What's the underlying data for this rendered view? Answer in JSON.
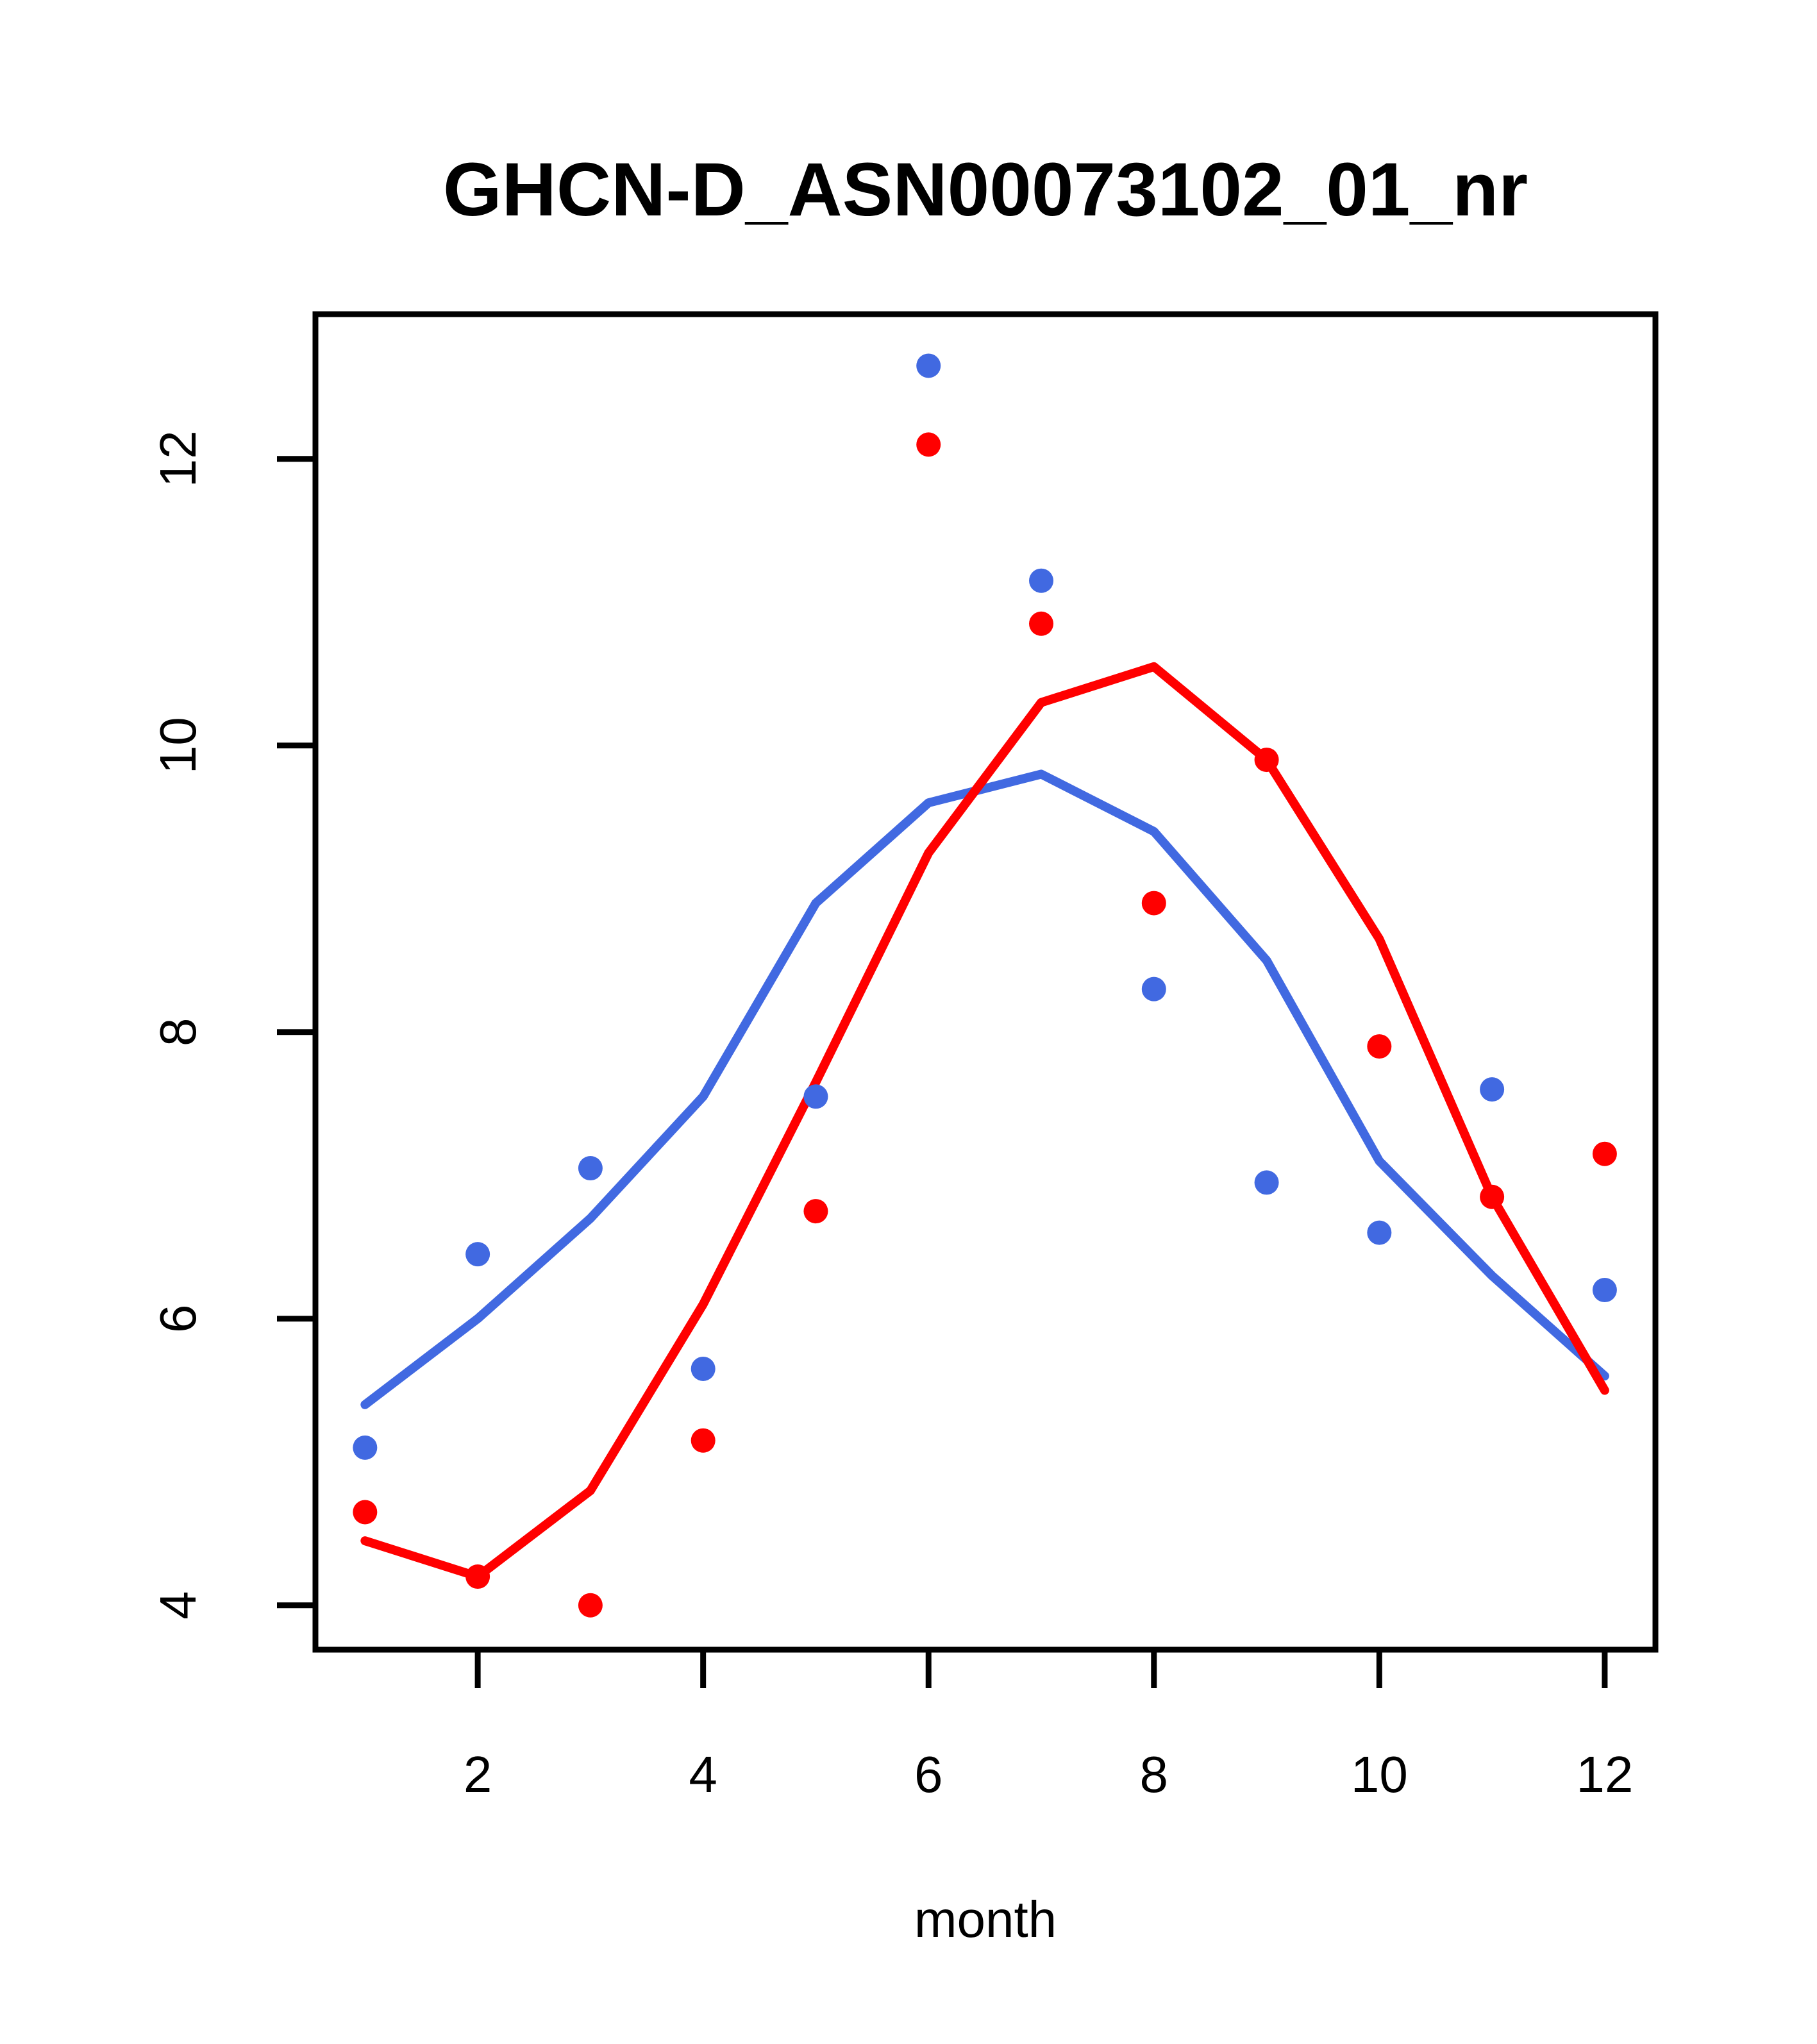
{
  "page": {
    "background": "#ffffff"
  },
  "chart_data": {
    "type": "scatter",
    "title": "GHCN-D_ASN00073102_01_nr",
    "xlabel": "month",
    "ylabel": "",
    "x": [
      1,
      2,
      3,
      4,
      5,
      6,
      7,
      8,
      9,
      10,
      11,
      12
    ],
    "x_ticks": [
      2,
      4,
      6,
      8,
      10,
      12
    ],
    "y_ticks": [
      4,
      6,
      8,
      10,
      12
    ],
    "xlim": [
      0.56,
      12.45
    ],
    "ylim": [
      3.69,
      13.01
    ],
    "grid": false,
    "legend": "none",
    "frame": "box",
    "colors": {
      "blue": "#4169E1",
      "red": "#FF0000",
      "axis": "#000000"
    },
    "series": [
      {
        "name": "blue-points",
        "kind": "points",
        "color": "blue",
        "values": [
          5.1,
          6.45,
          7.05,
          5.65,
          7.55,
          12.65,
          11.15,
          8.3,
          6.95,
          6.6,
          7.6,
          6.2
        ]
      },
      {
        "name": "red-points",
        "kind": "points",
        "color": "red",
        "values": [
          4.65,
          4.2,
          4.0,
          5.15,
          6.75,
          12.1,
          10.85,
          8.9,
          9.9,
          7.9,
          6.85,
          7.15
        ]
      },
      {
        "name": "blue-line",
        "kind": "line",
        "color": "blue",
        "values": [
          5.4,
          6.0,
          6.7,
          7.55,
          8.9,
          9.6,
          9.8,
          9.4,
          8.5,
          7.1,
          6.3,
          5.6
        ]
      },
      {
        "name": "red-line",
        "kind": "line",
        "color": "red",
        "values": [
          4.45,
          4.2,
          4.8,
          6.1,
          7.65,
          9.25,
          10.3,
          10.55,
          9.9,
          8.65,
          6.85,
          5.5
        ]
      }
    ]
  }
}
